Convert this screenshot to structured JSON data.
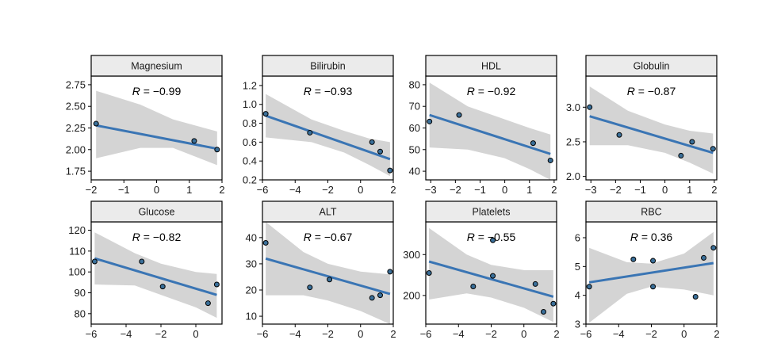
{
  "chart_data": [
    {
      "type": "scatter",
      "title": "Magnesium",
      "annotation": {
        "label": "R",
        "value": "= −0.99"
      },
      "xlim": [
        -2,
        2
      ],
      "ylim": [
        1.65,
        2.85
      ],
      "xticks": [
        -2,
        -1,
        0,
        1,
        2
      ],
      "xtick_labels": [
        "−2",
        "−1",
        "0",
        "1",
        "2"
      ],
      "yticks": [
        1.75,
        2.0,
        2.25,
        2.5,
        2.75
      ],
      "ytick_labels": [
        "1.75",
        "2.00",
        "2.25",
        "2.50",
        "2.75"
      ],
      "points": [
        {
          "x": -1.85,
          "y": 2.3
        },
        {
          "x": 1.15,
          "y": 2.1
        },
        {
          "x": 1.85,
          "y": 2.0
        }
      ],
      "fit": {
        "x0": -1.85,
        "y0": 2.28,
        "x1": 1.85,
        "y1": 2.01
      },
      "ribbon": {
        "upper": [
          [
            -1.85,
            2.68
          ],
          [
            -0.5,
            2.52
          ],
          [
            0.5,
            2.35
          ],
          [
            1.85,
            2.21
          ]
        ],
        "lower": [
          [
            -1.85,
            1.9
          ],
          [
            -0.5,
            2.02
          ],
          [
            0.5,
            2.02
          ],
          [
            1.85,
            1.82
          ]
        ]
      }
    },
    {
      "type": "scatter",
      "title": "Bilirubin",
      "annotation": {
        "label": "R",
        "value": "= −0.93"
      },
      "xlim": [
        -6,
        2
      ],
      "ylim": [
        0.2,
        1.3
      ],
      "xticks": [
        -6,
        -4,
        -2,
        0,
        2
      ],
      "xtick_labels": [
        "−6",
        "−4",
        "−2",
        "0",
        "2"
      ],
      "yticks": [
        0.2,
        0.4,
        0.6,
        0.8,
        1.0,
        1.2
      ],
      "ytick_labels": [
        "0.2",
        "0.4",
        "0.6",
        "0.8",
        "1.0",
        "1.2"
      ],
      "points": [
        {
          "x": -5.8,
          "y": 0.9
        },
        {
          "x": -3.1,
          "y": 0.7
        },
        {
          "x": 0.7,
          "y": 0.6
        },
        {
          "x": 1.2,
          "y": 0.5
        },
        {
          "x": 1.8,
          "y": 0.3
        }
      ],
      "fit": {
        "x0": -5.8,
        "y0": 0.88,
        "x1": 1.8,
        "y1": 0.42
      },
      "ribbon": {
        "upper": [
          [
            -5.8,
            1.11
          ],
          [
            -3.0,
            0.84
          ],
          [
            -1.0,
            0.72
          ],
          [
            0.5,
            0.64
          ],
          [
            1.8,
            0.6
          ]
        ],
        "lower": [
          [
            -5.8,
            0.65
          ],
          [
            -3.0,
            0.6
          ],
          [
            -1.0,
            0.49
          ],
          [
            0.5,
            0.36
          ],
          [
            1.8,
            0.24
          ]
        ]
      }
    },
    {
      "type": "scatter",
      "title": "HDL",
      "annotation": {
        "label": "R",
        "value": "= −0.92"
      },
      "xlim": [
        -3.2,
        2.1
      ],
      "ylim": [
        36,
        84
      ],
      "xticks": [
        -3,
        -2,
        -1,
        0,
        1,
        2
      ],
      "xtick_labels": [
        "−3",
        "−2",
        "−1",
        "0",
        "1",
        "2"
      ],
      "yticks": [
        40,
        50,
        60,
        70,
        80
      ],
      "ytick_labels": [
        "40",
        "50",
        "60",
        "70",
        "80"
      ],
      "points": [
        {
          "x": -3.05,
          "y": 63
        },
        {
          "x": -1.85,
          "y": 66
        },
        {
          "x": 1.15,
          "y": 53
        },
        {
          "x": 1.85,
          "y": 45
        }
      ],
      "fit": {
        "x0": -3.05,
        "y0": 66,
        "x1": 1.85,
        "y1": 48
      },
      "ribbon": {
        "upper": [
          [
            -3.05,
            81
          ],
          [
            -1.5,
            70
          ],
          [
            0.0,
            64
          ],
          [
            1.0,
            60
          ],
          [
            1.85,
            57
          ]
        ],
        "lower": [
          [
            -3.05,
            51
          ],
          [
            -1.5,
            50
          ],
          [
            0.0,
            46
          ],
          [
            1.0,
            41
          ],
          [
            1.85,
            36
          ]
        ]
      }
    },
    {
      "type": "scatter",
      "title": "Globulin",
      "annotation": {
        "label": "R",
        "value": "= −0.87"
      },
      "xlim": [
        -3.2,
        2.1
      ],
      "ylim": [
        1.95,
        3.45
      ],
      "xticks": [
        -3,
        -2,
        -1,
        0,
        1,
        2
      ],
      "xtick_labels": [
        "−3",
        "−2",
        "−1",
        "0",
        "1",
        "2"
      ],
      "yticks": [
        2.0,
        2.5,
        3.0
      ],
      "ytick_labels": [
        "2.0",
        "2.5",
        "3.0"
      ],
      "points": [
        {
          "x": -3.05,
          "y": 3.0
        },
        {
          "x": -1.85,
          "y": 2.6
        },
        {
          "x": 0.65,
          "y": 2.3
        },
        {
          "x": 1.1,
          "y": 2.5
        },
        {
          "x": 1.95,
          "y": 2.4
        }
      ],
      "fit": {
        "x0": -3.05,
        "y0": 2.87,
        "x1": 1.95,
        "y1": 2.34
      },
      "ribbon": {
        "upper": [
          [
            -3.05,
            3.3
          ],
          [
            -1.5,
            2.95
          ],
          [
            0.0,
            2.75
          ],
          [
            1.0,
            2.66
          ],
          [
            1.95,
            2.62
          ]
        ],
        "lower": [
          [
            -3.05,
            2.45
          ],
          [
            -1.5,
            2.45
          ],
          [
            0.0,
            2.34
          ],
          [
            1.0,
            2.2
          ],
          [
            1.95,
            2.04
          ]
        ]
      }
    },
    {
      "type": "scatter",
      "title": "Glucose",
      "annotation": {
        "label": "R",
        "value": "= −0.82"
      },
      "xlim": [
        -6,
        1.5
      ],
      "ylim": [
        75,
        124
      ],
      "xticks": [
        -6,
        -4,
        -2,
        0
      ],
      "xtick_labels": [
        "−6",
        "−4",
        "−2",
        "0"
      ],
      "yticks": [
        80,
        90,
        100,
        110,
        120
      ],
      "ytick_labels": [
        "80",
        "90",
        "100",
        "110",
        "120"
      ],
      "points": [
        {
          "x": -5.8,
          "y": 105
        },
        {
          "x": -3.1,
          "y": 105
        },
        {
          "x": -1.9,
          "y": 93
        },
        {
          "x": 0.7,
          "y": 85
        },
        {
          "x": 1.2,
          "y": 94
        }
      ],
      "fit": {
        "x0": -5.8,
        "y0": 106.5,
        "x1": 1.2,
        "y1": 89
      },
      "ribbon": {
        "upper": [
          [
            -5.8,
            119
          ],
          [
            -3.5,
            109
          ],
          [
            -2.0,
            104
          ],
          [
            0.0,
            100
          ],
          [
            1.2,
            99
          ]
        ],
        "lower": [
          [
            -5.8,
            94
          ],
          [
            -3.5,
            93.5
          ],
          [
            -2.0,
            89
          ],
          [
            0.0,
            83
          ],
          [
            1.2,
            78
          ]
        ]
      }
    },
    {
      "type": "scatter",
      "title": "ALT",
      "annotation": {
        "label": "R",
        "value": "= −0.67"
      },
      "xlim": [
        -6,
        2
      ],
      "ylim": [
        7,
        46
      ],
      "xticks": [
        -6,
        -4,
        -2,
        0,
        2
      ],
      "xtick_labels": [
        "−6",
        "−4",
        "−2",
        "0",
        "2"
      ],
      "yticks": [
        10,
        20,
        30,
        40
      ],
      "ytick_labels": [
        "10",
        "20",
        "30",
        "40"
      ],
      "points": [
        {
          "x": -5.8,
          "y": 38
        },
        {
          "x": -3.1,
          "y": 21
        },
        {
          "x": -1.9,
          "y": 24
        },
        {
          "x": 0.7,
          "y": 17
        },
        {
          "x": 1.2,
          "y": 18
        },
        {
          "x": 1.8,
          "y": 27
        }
      ],
      "fit": {
        "x0": -5.8,
        "y0": 32,
        "x1": 1.8,
        "y1": 18.5
      },
      "ribbon": {
        "upper": [
          [
            -5.8,
            46
          ],
          [
            -3.5,
            34.5
          ],
          [
            -2.0,
            30
          ],
          [
            0.0,
            27
          ],
          [
            1.8,
            26
          ]
        ],
        "lower": [
          [
            -5.8,
            18
          ],
          [
            -3.5,
            18
          ],
          [
            -2.0,
            16
          ],
          [
            0.0,
            12
          ],
          [
            1.8,
            7
          ]
        ]
      }
    },
    {
      "type": "scatter",
      "title": "Platelets",
      "annotation": {
        "label": "R",
        "value": "= −0.55"
      },
      "xlim": [
        -6,
        2
      ],
      "ylim": [
        130,
        380
      ],
      "xticks": [
        -6,
        -4,
        -2,
        0,
        2
      ],
      "xtick_labels": [
        "−6",
        "−4",
        "−2",
        "0",
        "2"
      ],
      "yticks": [
        200,
        300
      ],
      "ytick_labels": [
        "200",
        "300"
      ],
      "points": [
        {
          "x": -5.8,
          "y": 255
        },
        {
          "x": -3.1,
          "y": 222
        },
        {
          "x": -1.9,
          "y": 335
        },
        {
          "x": -1.9,
          "y": 248
        },
        {
          "x": 0.7,
          "y": 228
        },
        {
          "x": 1.2,
          "y": 160
        },
        {
          "x": 1.8,
          "y": 180
        }
      ],
      "fit": {
        "x0": -5.8,
        "y0": 283,
        "x1": 1.8,
        "y1": 197
      },
      "ribbon": {
        "upper": [
          [
            -5.8,
            365
          ],
          [
            -3.5,
            300
          ],
          [
            -2.0,
            275
          ],
          [
            0.0,
            262
          ],
          [
            1.8,
            262
          ]
        ],
        "lower": [
          [
            -5.8,
            190
          ],
          [
            -3.5,
            205
          ],
          [
            -2.0,
            195
          ],
          [
            0.0,
            170
          ],
          [
            1.8,
            135
          ]
        ]
      }
    },
    {
      "type": "scatter",
      "title": "RBC",
      "annotation": {
        "label": "R",
        "value": "= 0.36"
      },
      "xlim": [
        -6,
        2
      ],
      "ylim": [
        3,
        6.55
      ],
      "xticks": [
        -6,
        -4,
        -2,
        0,
        2
      ],
      "xtick_labels": [
        "−6",
        "−4",
        "−2",
        "0",
        "2"
      ],
      "yticks": [
        3,
        4,
        5,
        6
      ],
      "ytick_labels": [
        "3",
        "4",
        "5",
        "6"
      ],
      "points": [
        {
          "x": -5.8,
          "y": 4.3
        },
        {
          "x": -3.1,
          "y": 5.25
        },
        {
          "x": -1.9,
          "y": 5.2
        },
        {
          "x": -1.9,
          "y": 4.3
        },
        {
          "x": 0.7,
          "y": 3.95
        },
        {
          "x": 1.2,
          "y": 5.3
        },
        {
          "x": 1.8,
          "y": 5.65
        }
      ],
      "fit": {
        "x0": -5.8,
        "y0": 4.45,
        "x1": 1.8,
        "y1": 5.12
      },
      "ribbon": {
        "upper": [
          [
            -5.8,
            5.65
          ],
          [
            -3.5,
            5.15
          ],
          [
            -2.0,
            5.1
          ],
          [
            0.0,
            5.45
          ],
          [
            1.8,
            6.2
          ]
        ],
        "lower": [
          [
            -5.8,
            3.05
          ],
          [
            -3.5,
            4.05
          ],
          [
            -2.0,
            4.3
          ],
          [
            0.0,
            4.2
          ],
          [
            1.8,
            4.0
          ]
        ]
      }
    }
  ]
}
